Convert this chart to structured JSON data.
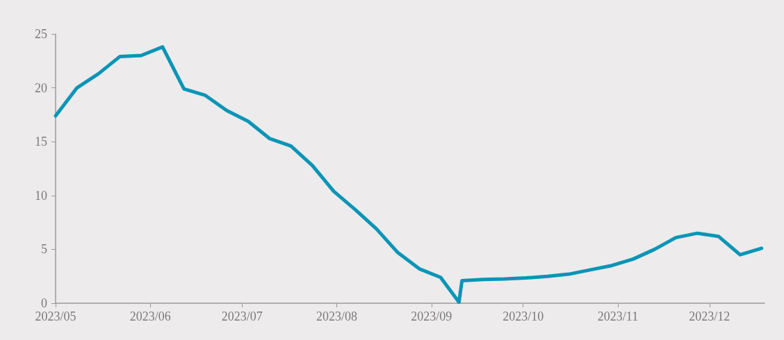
{
  "chart_data": {
    "type": "line",
    "x": [
      "2023-05-01",
      "2023-05-08",
      "2023-05-15",
      "2023-05-22",
      "2023-05-29",
      "2023-06-05",
      "2023-06-12",
      "2023-06-19",
      "2023-06-26",
      "2023-07-03",
      "2023-07-10",
      "2023-07-17",
      "2023-07-24",
      "2023-07-31",
      "2023-08-07",
      "2023-08-14",
      "2023-08-21",
      "2023-08-28",
      "2023-09-04",
      "2023-09-10",
      "2023-09-11",
      "2023-09-18",
      "2023-09-25",
      "2023-10-02",
      "2023-10-09",
      "2023-10-16",
      "2023-10-23",
      "2023-10-30",
      "2023-11-06",
      "2023-11-13",
      "2023-11-20",
      "2023-11-27",
      "2023-12-04",
      "2023-12-11",
      "2023-12-18"
    ],
    "series": [
      {
        "color": "#0a95b6",
        "values": [
          17.4,
          20,
          21.3,
          22.9,
          23,
          23.8,
          19.9,
          19.3,
          17.9,
          16.9,
          15.3,
          14.6,
          12.8,
          10.4,
          8.7,
          6.9,
          4.7,
          3.2,
          2.4,
          0.1,
          2.1,
          2.2,
          2.25,
          2.35,
          2.5,
          2.7,
          3.1,
          3.5,
          4.1,
          5,
          6.1,
          6.5,
          6.2,
          4.5,
          5.1
        ]
      }
    ],
    "xlim": [
      "2023-05-01",
      "2023-12-19"
    ],
    "xticks": [
      {
        "value": "2023-05-01",
        "label": "2023/05"
      },
      {
        "value": "2023-06-01",
        "label": "2023/06"
      },
      {
        "value": "2023-07-01",
        "label": "2023/07"
      },
      {
        "value": "2023-08-01",
        "label": "2023/08"
      },
      {
        "value": "2023-09-01",
        "label": "2023/09"
      },
      {
        "value": "2023-10-01",
        "label": "2023/10"
      },
      {
        "value": "2023-11-01",
        "label": "2023/11"
      },
      {
        "value": "2023-12-01",
        "label": "2023/12"
      }
    ],
    "ylim": [
      0,
      25
    ],
    "yticks": [
      0,
      5,
      10,
      15,
      20,
      25
    ],
    "grid": false,
    "marker": "none",
    "line_style": "solid"
  }
}
